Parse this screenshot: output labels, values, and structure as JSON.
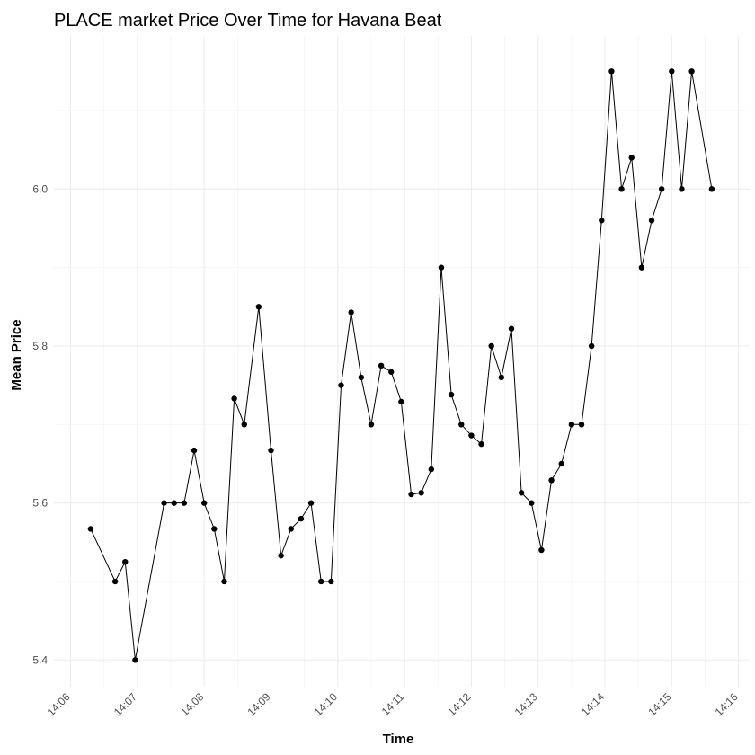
{
  "chart_data": {
    "type": "line",
    "title": "PLACE market Price Over Time for Havana Beat",
    "xlabel": "Time",
    "ylabel": "Mean Price",
    "x_ticks": [
      "14:06",
      "14:07",
      "14:08",
      "14:09",
      "14:10",
      "14:11",
      "14:12",
      "14:13",
      "14:14",
      "14:15",
      "14:16"
    ],
    "y_ticks": [
      "5.4",
      "5.6",
      "5.8",
      "6.0"
    ],
    "xlim": [
      "14:05:45",
      "14:16:10"
    ],
    "ylim": [
      5.366,
      6.195
    ],
    "grid": true,
    "legend": "none",
    "line_color": "#000000",
    "point_color": "#000000",
    "series": [
      {
        "x": [
          "14:06:18",
          "14:06:40",
          "14:06:49",
          "14:06:58",
          "14:07:24",
          "14:07:33",
          "14:07:42",
          "14:07:51",
          "14:08:00",
          "14:08:09",
          "14:08:18",
          "14:08:27",
          "14:08:36",
          "14:08:49",
          "14:09:00",
          "14:09:09",
          "14:09:18",
          "14:09:27",
          "14:09:36",
          "14:09:45",
          "14:09:54",
          "14:10:03",
          "14:10:12",
          "14:10:21",
          "14:10:30",
          "14:10:39",
          "14:10:48",
          "14:10:57",
          "14:11:06",
          "14:11:15",
          "14:11:24",
          "14:11:33",
          "14:11:42",
          "14:11:51",
          "14:12:00",
          "14:12:09",
          "14:12:18",
          "14:12:27",
          "14:12:36",
          "14:12:45",
          "14:12:54",
          "14:13:03",
          "14:13:12",
          "14:13:21",
          "14:13:30",
          "14:13:39",
          "14:13:48",
          "14:13:57",
          "14:14:06",
          "14:14:15",
          "14:14:24",
          "14:14:33",
          "14:14:42",
          "14:14:51",
          "14:15:00",
          "14:15:09",
          "14:15:18",
          "14:15:36"
        ],
        "y": [
          5.567,
          5.5,
          5.525,
          5.4,
          5.6,
          5.6,
          5.6,
          5.667,
          5.6,
          5.567,
          5.5,
          5.733,
          5.7,
          5.85,
          5.667,
          5.533,
          5.567,
          5.58,
          5.6,
          5.5,
          5.5,
          5.75,
          5.843,
          5.76,
          5.7,
          5.775,
          5.767,
          5.729,
          5.611,
          5.613,
          5.643,
          5.9,
          5.738,
          5.7,
          5.686,
          5.675,
          5.8,
          5.76,
          5.822,
          5.613,
          5.6,
          5.54,
          5.629,
          5.65,
          5.7,
          5.7,
          5.8,
          5.96,
          6.15,
          6.0,
          6.04,
          5.9,
          5.96,
          6.0,
          6.15,
          6.0,
          6.15,
          6.0
        ]
      }
    ]
  }
}
